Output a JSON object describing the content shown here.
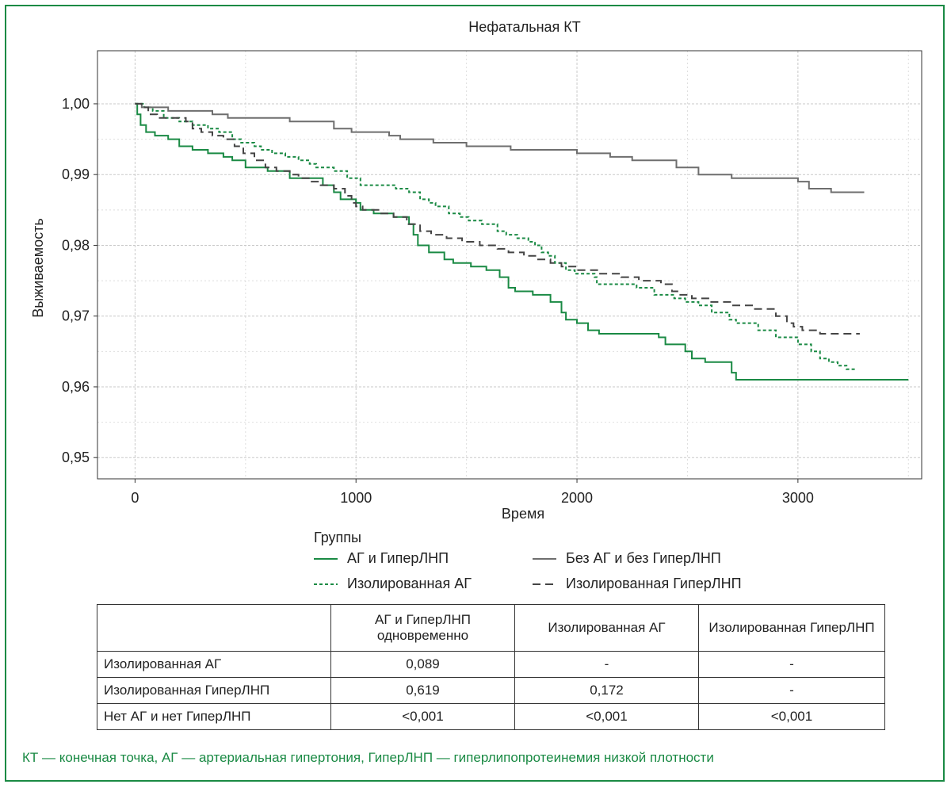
{
  "colors": {
    "frame": "#1a8a44",
    "green": "#1a8a44",
    "gray": "#6e6e6e",
    "darkgray": "#444444",
    "grid": "#c8c8c8",
    "footnote": "#1a8a44"
  },
  "chart_data": {
    "type": "line",
    "subtype": "step",
    "title": "Нефатальная КТ",
    "xlabel": "Время",
    "ylabel": "Выживаемость",
    "xlim": [
      -170,
      3560
    ],
    "ylim": [
      0.947,
      1.0075
    ],
    "xticks": [
      0,
      1000,
      2000,
      3000
    ],
    "xtick_labels": [
      "0",
      "1000",
      "2000",
      "3000"
    ],
    "yticks": [
      0.95,
      0.96,
      0.97,
      0.98,
      0.99,
      1.0
    ],
    "ytick_labels": [
      "0,95",
      "0,96",
      "0,97",
      "0,98",
      "0,99",
      "1,00"
    ],
    "grid": true,
    "legend_title": "Группы",
    "legend_position": "bottom",
    "series": [
      {
        "name": "АГ и ГиперЛНП",
        "style": "solid",
        "color": "#1a8a44",
        "points": [
          [
            0,
            1.0
          ],
          [
            10,
            0.9985
          ],
          [
            25,
            0.997
          ],
          [
            50,
            0.996
          ],
          [
            90,
            0.9955
          ],
          [
            150,
            0.995
          ],
          [
            200,
            0.994
          ],
          [
            260,
            0.9935
          ],
          [
            330,
            0.993
          ],
          [
            400,
            0.9925
          ],
          [
            440,
            0.992
          ],
          [
            500,
            0.991
          ],
          [
            600,
            0.9905
          ],
          [
            700,
            0.9895
          ],
          [
            850,
            0.9885
          ],
          [
            900,
            0.9875
          ],
          [
            930,
            0.9865
          ],
          [
            1000,
            0.986
          ],
          [
            1020,
            0.985
          ],
          [
            1080,
            0.9845
          ],
          [
            1170,
            0.984
          ],
          [
            1240,
            0.983
          ],
          [
            1260,
            0.9815
          ],
          [
            1280,
            0.98
          ],
          [
            1330,
            0.979
          ],
          [
            1400,
            0.978
          ],
          [
            1440,
            0.9775
          ],
          [
            1520,
            0.977
          ],
          [
            1590,
            0.9765
          ],
          [
            1650,
            0.9755
          ],
          [
            1690,
            0.974
          ],
          [
            1720,
            0.9735
          ],
          [
            1800,
            0.973
          ],
          [
            1880,
            0.972
          ],
          [
            1930,
            0.9705
          ],
          [
            1950,
            0.9695
          ],
          [
            2000,
            0.969
          ],
          [
            2050,
            0.968
          ],
          [
            2100,
            0.9675
          ],
          [
            2300,
            0.9675
          ],
          [
            2370,
            0.967
          ],
          [
            2400,
            0.966
          ],
          [
            2490,
            0.965
          ],
          [
            2520,
            0.964
          ],
          [
            2580,
            0.9635
          ],
          [
            2600,
            0.9635
          ],
          [
            2700,
            0.962
          ],
          [
            2720,
            0.961
          ],
          [
            3500,
            0.961
          ]
        ]
      },
      {
        "name": "Изолированная АГ",
        "style": "dotted",
        "color": "#1a8a44",
        "points": [
          [
            0,
            1.0
          ],
          [
            40,
            0.9995
          ],
          [
            80,
            0.999
          ],
          [
            130,
            0.998
          ],
          [
            200,
            0.9975
          ],
          [
            260,
            0.997
          ],
          [
            330,
            0.9965
          ],
          [
            380,
            0.996
          ],
          [
            440,
            0.995
          ],
          [
            480,
            0.9945
          ],
          [
            540,
            0.994
          ],
          [
            570,
            0.9935
          ],
          [
            620,
            0.993
          ],
          [
            680,
            0.9925
          ],
          [
            740,
            0.992
          ],
          [
            790,
            0.9915
          ],
          [
            820,
            0.991
          ],
          [
            900,
            0.9905
          ],
          [
            960,
            0.9895
          ],
          [
            1000,
            0.9895
          ],
          [
            1020,
            0.9885
          ],
          [
            1180,
            0.988
          ],
          [
            1240,
            0.9875
          ],
          [
            1290,
            0.9865
          ],
          [
            1330,
            0.986
          ],
          [
            1360,
            0.9855
          ],
          [
            1420,
            0.9845
          ],
          [
            1470,
            0.984
          ],
          [
            1510,
            0.9835
          ],
          [
            1570,
            0.983
          ],
          [
            1640,
            0.982
          ],
          [
            1680,
            0.9815
          ],
          [
            1730,
            0.981
          ],
          [
            1780,
            0.9805
          ],
          [
            1810,
            0.98
          ],
          [
            1840,
            0.979
          ],
          [
            1870,
            0.9785
          ],
          [
            1900,
            0.9775
          ],
          [
            1950,
            0.9765
          ],
          [
            1990,
            0.976
          ],
          [
            2080,
            0.9755
          ],
          [
            2090,
            0.9745
          ],
          [
            2270,
            0.974
          ],
          [
            2350,
            0.973
          ],
          [
            2440,
            0.9725
          ],
          [
            2490,
            0.972
          ],
          [
            2550,
            0.9715
          ],
          [
            2610,
            0.9705
          ],
          [
            2690,
            0.9695
          ],
          [
            2720,
            0.969
          ],
          [
            2820,
            0.968
          ],
          [
            2900,
            0.967
          ],
          [
            3000,
            0.966
          ],
          [
            3060,
            0.965
          ],
          [
            3100,
            0.964
          ],
          [
            3140,
            0.9635
          ],
          [
            3180,
            0.963
          ],
          [
            3220,
            0.9625
          ],
          [
            3260,
            0.9625
          ]
        ]
      },
      {
        "name": "Без АГ и без ГиперЛНП",
        "style": "solid",
        "color": "#6e6e6e",
        "points": [
          [
            0,
            1.0
          ],
          [
            30,
            0.9995
          ],
          [
            150,
            0.999
          ],
          [
            350,
            0.9985
          ],
          [
            420,
            0.998
          ],
          [
            700,
            0.9975
          ],
          [
            900,
            0.9965
          ],
          [
            980,
            0.996
          ],
          [
            1150,
            0.9955
          ],
          [
            1200,
            0.995
          ],
          [
            1350,
            0.9945
          ],
          [
            1500,
            0.994
          ],
          [
            1700,
            0.9935
          ],
          [
            2000,
            0.993
          ],
          [
            2150,
            0.9925
          ],
          [
            2250,
            0.992
          ],
          [
            2450,
            0.991
          ],
          [
            2550,
            0.99
          ],
          [
            2700,
            0.9895
          ],
          [
            3000,
            0.989
          ],
          [
            3050,
            0.988
          ],
          [
            3150,
            0.9875
          ],
          [
            3300,
            0.9875
          ]
        ]
      },
      {
        "name": "Изолированная ГиперЛНП",
        "style": "dashed",
        "color": "#444444",
        "points": [
          [
            0,
            1.0
          ],
          [
            30,
            0.9995
          ],
          [
            60,
            0.9985
          ],
          [
            100,
            0.998
          ],
          [
            170,
            0.998
          ],
          [
            230,
            0.9975
          ],
          [
            260,
            0.9965
          ],
          [
            300,
            0.996
          ],
          [
            350,
            0.9955
          ],
          [
            400,
            0.995
          ],
          [
            450,
            0.994
          ],
          [
            490,
            0.993
          ],
          [
            540,
            0.992
          ],
          [
            590,
            0.991
          ],
          [
            640,
            0.9905
          ],
          [
            700,
            0.99
          ],
          [
            740,
            0.9895
          ],
          [
            790,
            0.989
          ],
          [
            840,
            0.9885
          ],
          [
            900,
            0.988
          ],
          [
            950,
            0.987
          ],
          [
            980,
            0.986
          ],
          [
            1000,
            0.9855
          ],
          [
            1030,
            0.985
          ],
          [
            1110,
            0.9845
          ],
          [
            1170,
            0.984
          ],
          [
            1230,
            0.983
          ],
          [
            1290,
            0.982
          ],
          [
            1340,
            0.9815
          ],
          [
            1410,
            0.981
          ],
          [
            1480,
            0.9805
          ],
          [
            1560,
            0.98
          ],
          [
            1640,
            0.9795
          ],
          [
            1690,
            0.979
          ],
          [
            1760,
            0.9785
          ],
          [
            1820,
            0.978
          ],
          [
            1880,
            0.9775
          ],
          [
            1930,
            0.977
          ],
          [
            2000,
            0.9765
          ],
          [
            2100,
            0.976
          ],
          [
            2200,
            0.9755
          ],
          [
            2280,
            0.975
          ],
          [
            2380,
            0.9745
          ],
          [
            2430,
            0.9735
          ],
          [
            2460,
            0.973
          ],
          [
            2520,
            0.9725
          ],
          [
            2600,
            0.972
          ],
          [
            2700,
            0.9715
          ],
          [
            2800,
            0.971
          ],
          [
            2900,
            0.97
          ],
          [
            2950,
            0.969
          ],
          [
            2980,
            0.9685
          ],
          [
            3020,
            0.968
          ],
          [
            3100,
            0.9675
          ],
          [
            3200,
            0.9675
          ],
          [
            3280,
            0.9675
          ]
        ]
      }
    ]
  },
  "legend": {
    "title": "Группы",
    "items": [
      {
        "label": "АГ и ГиперЛНП",
        "style": "solid",
        "color": "#1a8a44"
      },
      {
        "label": "Без АГ и без ГиперЛНП",
        "style": "solid",
        "color": "#6e6e6e"
      },
      {
        "label": "Изолированная АГ",
        "style": "dotted",
        "color": "#1a8a44"
      },
      {
        "label": "Изолированная ГиперЛНП",
        "style": "dashed",
        "color": "#444444"
      }
    ]
  },
  "table": {
    "headers": [
      "",
      "АГ и ГиперЛНП одновременно",
      "Изолированная АГ",
      "Изолированная ГиперЛНП"
    ],
    "rows": [
      [
        "Изолированная АГ",
        "0,089",
        "-",
        "-"
      ],
      [
        "Изолированная ГиперЛНП",
        "0,619",
        "0,172",
        "-"
      ],
      [
        "Нет АГ и нет ГиперЛНП",
        "<0,001",
        "<0,001",
        "<0,001"
      ]
    ]
  },
  "footnote": "КТ — конечная точка, АГ — артериальная гипертония, ГиперЛНП — гиперлипопротеинемия низкой плотности"
}
